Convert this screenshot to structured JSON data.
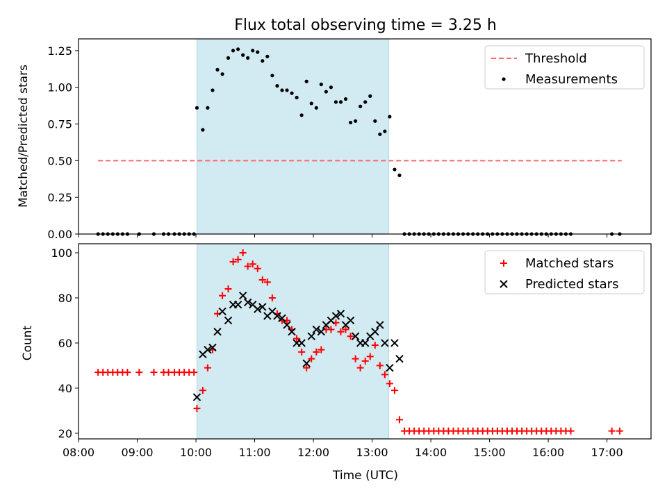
{
  "chart_data": [
    {
      "type": "scatter",
      "title": "Flux total observing time = 3.25 h",
      "xlabel": "",
      "ylabel": "Matched/Predicted stars",
      "xlim": [
        "08:00",
        "17:45"
      ],
      "ylim": [
        0,
        1.33
      ],
      "yticks": [
        "0.00",
        "0.25",
        "0.50",
        "0.75",
        "1.00",
        "1.25"
      ],
      "shaded_span": {
        "start": "10:01",
        "end": "13:17",
        "color": "#add8e6"
      },
      "legend_position": "top-right",
      "series": [
        {
          "name": "Threshold",
          "kind": "dashed-line",
          "color": "#ff6666",
          "points": [
            [
              "08:20",
              0.5
            ],
            [
              "17:15",
              0.5
            ]
          ]
        },
        {
          "name": "Measurements",
          "kind": "dot",
          "color": "#000000",
          "points": [
            [
              "08:20",
              0
            ],
            [
              "08:25",
              0
            ],
            [
              "08:30",
              0
            ],
            [
              "08:35",
              0
            ],
            [
              "08:40",
              0
            ],
            [
              "08:45",
              0
            ],
            [
              "08:50",
              0
            ],
            [
              "09:02",
              0
            ],
            [
              "09:17",
              0
            ],
            [
              "09:27",
              0
            ],
            [
              "09:32",
              0
            ],
            [
              "09:38",
              0
            ],
            [
              "09:43",
              0
            ],
            [
              "09:48",
              0
            ],
            [
              "09:53",
              0
            ],
            [
              "09:58",
              0
            ],
            [
              "10:01",
              0.86
            ],
            [
              "10:07",
              0.71
            ],
            [
              "10:12",
              0.86
            ],
            [
              "10:17",
              0.98
            ],
            [
              "10:22",
              1.12
            ],
            [
              "10:27",
              1.09
            ],
            [
              "10:33",
              1.2
            ],
            [
              "10:38",
              1.25
            ],
            [
              "10:43",
              1.26
            ],
            [
              "10:48",
              1.22
            ],
            [
              "10:53",
              1.2
            ],
            [
              "10:58",
              1.25
            ],
            [
              "11:03",
              1.24
            ],
            [
              "11:08",
              1.18
            ],
            [
              "11:13",
              1.21
            ],
            [
              "11:18",
              1.08
            ],
            [
              "11:23",
              1.01
            ],
            [
              "11:28",
              0.98
            ],
            [
              "11:33",
              0.98
            ],
            [
              "11:38",
              0.96
            ],
            [
              "11:43",
              0.93
            ],
            [
              "11:48",
              0.81
            ],
            [
              "11:53",
              1.04
            ],
            [
              "11:58",
              0.89
            ],
            [
              "12:03",
              0.86
            ],
            [
              "12:08",
              1.02
            ],
            [
              "12:13",
              0.97
            ],
            [
              "12:18",
              1.0
            ],
            [
              "12:23",
              0.9
            ],
            [
              "12:28",
              0.9
            ],
            [
              "12:33",
              0.92
            ],
            [
              "12:38",
              0.76
            ],
            [
              "12:43",
              0.77
            ],
            [
              "12:48",
              0.87
            ],
            [
              "12:53",
              0.9
            ],
            [
              "12:58",
              0.94
            ],
            [
              "13:03",
              0.77
            ],
            [
              "13:08",
              0.68
            ],
            [
              "13:13",
              0.7
            ],
            [
              "13:18",
              0.8
            ],
            [
              "13:23",
              0.44
            ],
            [
              "13:28",
              0.4
            ],
            [
              "13:33",
              0
            ],
            [
              "13:38",
              0
            ],
            [
              "13:43",
              0
            ],
            [
              "13:48",
              0
            ],
            [
              "13:53",
              0
            ],
            [
              "13:58",
              0
            ],
            [
              "14:03",
              0
            ],
            [
              "14:08",
              0
            ],
            [
              "14:13",
              0
            ],
            [
              "14:18",
              0
            ],
            [
              "14:23",
              0
            ],
            [
              "14:28",
              0
            ],
            [
              "14:33",
              0
            ],
            [
              "14:38",
              0
            ],
            [
              "14:43",
              0
            ],
            [
              "14:48",
              0
            ],
            [
              "14:53",
              0
            ],
            [
              "14:58",
              0
            ],
            [
              "15:03",
              0
            ],
            [
              "15:08",
              0
            ],
            [
              "15:13",
              0
            ],
            [
              "15:18",
              0
            ],
            [
              "15:23",
              0
            ],
            [
              "15:28",
              0
            ],
            [
              "15:33",
              0
            ],
            [
              "15:38",
              0
            ],
            [
              "15:43",
              0
            ],
            [
              "15:48",
              0
            ],
            [
              "15:53",
              0
            ],
            [
              "15:58",
              0
            ],
            [
              "16:03",
              0
            ],
            [
              "16:08",
              0
            ],
            [
              "16:13",
              0
            ],
            [
              "16:18",
              0
            ],
            [
              "16:23",
              0
            ],
            [
              "17:05",
              0
            ],
            [
              "17:13",
              0
            ]
          ]
        }
      ]
    },
    {
      "type": "scatter",
      "title": "",
      "xlabel": "Time (UTC)",
      "ylabel": "Count",
      "xlim": [
        "08:00",
        "17:45"
      ],
      "ylim": [
        17.5,
        104
      ],
      "yticks": [
        "20",
        "40",
        "60",
        "80",
        "100"
      ],
      "xticks": [
        "08:00",
        "09:00",
        "10:00",
        "11:00",
        "12:00",
        "13:00",
        "14:00",
        "15:00",
        "16:00",
        "17:00"
      ],
      "shaded_span": {
        "start": "10:01",
        "end": "13:17",
        "color": "#add8e6"
      },
      "legend_position": "top-right",
      "series": [
        {
          "name": "Matched stars",
          "kind": "plus",
          "color": "#ff0000",
          "points": [
            [
              "08:20",
              47
            ],
            [
              "08:25",
              47
            ],
            [
              "08:30",
              47
            ],
            [
              "08:35",
              47
            ],
            [
              "08:40",
              47
            ],
            [
              "08:45",
              47
            ],
            [
              "08:50",
              47
            ],
            [
              "09:02",
              47
            ],
            [
              "09:17",
              47
            ],
            [
              "09:27",
              47
            ],
            [
              "09:32",
              47
            ],
            [
              "09:38",
              47
            ],
            [
              "09:43",
              47
            ],
            [
              "09:48",
              47
            ],
            [
              "09:53",
              47
            ],
            [
              "09:58",
              47
            ],
            [
              "10:01",
              31
            ],
            [
              "10:07",
              39
            ],
            [
              "10:12",
              49
            ],
            [
              "10:17",
              57
            ],
            [
              "10:22",
              73
            ],
            [
              "10:27",
              81
            ],
            [
              "10:33",
              84
            ],
            [
              "10:38",
              96
            ],
            [
              "10:43",
              97
            ],
            [
              "10:48",
              100
            ],
            [
              "10:53",
              94
            ],
            [
              "10:58",
              95
            ],
            [
              "11:03",
              93
            ],
            [
              "11:08",
              88
            ],
            [
              "11:13",
              87
            ],
            [
              "11:18",
              80
            ],
            [
              "11:23",
              73
            ],
            [
              "11:28",
              70
            ],
            [
              "11:33",
              70
            ],
            [
              "11:38",
              66
            ],
            [
              "11:43",
              62
            ],
            [
              "11:48",
              56
            ],
            [
              "11:53",
              49
            ],
            [
              "11:58",
              53
            ],
            [
              "12:03",
              56
            ],
            [
              "12:08",
              57
            ],
            [
              "12:13",
              66
            ],
            [
              "12:18",
              66
            ],
            [
              "12:23",
              69
            ],
            [
              "12:28",
              65
            ],
            [
              "12:33",
              66
            ],
            [
              "12:38",
              63
            ],
            [
              "12:43",
              53
            ],
            [
              "12:48",
              49
            ],
            [
              "12:53",
              52
            ],
            [
              "12:58",
              54
            ],
            [
              "13:03",
              59
            ],
            [
              "13:08",
              50
            ],
            [
              "13:13",
              46
            ],
            [
              "13:18",
              42
            ],
            [
              "13:23",
              39
            ],
            [
              "13:28",
              26
            ],
            [
              "13:33",
              21
            ],
            [
              "13:38",
              21
            ],
            [
              "13:43",
              21
            ],
            [
              "13:48",
              21
            ],
            [
              "13:53",
              21
            ],
            [
              "13:58",
              21
            ],
            [
              "14:03",
              21
            ],
            [
              "14:08",
              21
            ],
            [
              "14:13",
              21
            ],
            [
              "14:18",
              21
            ],
            [
              "14:23",
              21
            ],
            [
              "14:28",
              21
            ],
            [
              "14:33",
              21
            ],
            [
              "14:38",
              21
            ],
            [
              "14:43",
              21
            ],
            [
              "14:48",
              21
            ],
            [
              "14:53",
              21
            ],
            [
              "14:58",
              21
            ],
            [
              "15:03",
              21
            ],
            [
              "15:08",
              21
            ],
            [
              "15:13",
              21
            ],
            [
              "15:18",
              21
            ],
            [
              "15:23",
              21
            ],
            [
              "15:28",
              21
            ],
            [
              "15:33",
              21
            ],
            [
              "15:38",
              21
            ],
            [
              "15:43",
              21
            ],
            [
              "15:48",
              21
            ],
            [
              "15:53",
              21
            ],
            [
              "15:58",
              21
            ],
            [
              "16:03",
              21
            ],
            [
              "16:08",
              21
            ],
            [
              "16:13",
              21
            ],
            [
              "16:18",
              21
            ],
            [
              "16:23",
              21
            ],
            [
              "17:05",
              21
            ],
            [
              "17:13",
              21
            ]
          ]
        },
        {
          "name": "Predicted stars",
          "kind": "cross",
          "color": "#000000",
          "points": [
            [
              "10:01",
              36
            ],
            [
              "10:07",
              55
            ],
            [
              "10:12",
              57
            ],
            [
              "10:17",
              58
            ],
            [
              "10:22",
              65
            ],
            [
              "10:27",
              74
            ],
            [
              "10:33",
              70
            ],
            [
              "10:38",
              77
            ],
            [
              "10:43",
              77
            ],
            [
              "10:48",
              81
            ],
            [
              "10:53",
              78
            ],
            [
              "10:58",
              77
            ],
            [
              "11:03",
              75
            ],
            [
              "11:08",
              76
            ],
            [
              "11:13",
              72
            ],
            [
              "11:18",
              74
            ],
            [
              "11:23",
              72
            ],
            [
              "11:28",
              71
            ],
            [
              "11:33",
              68
            ],
            [
              "11:38",
              65
            ],
            [
              "11:43",
              60
            ],
            [
              "11:48",
              60
            ],
            [
              "11:53",
              51
            ],
            [
              "11:58",
              63
            ],
            [
              "12:03",
              66
            ],
            [
              "12:08",
              65
            ],
            [
              "12:13",
              68
            ],
            [
              "12:18",
              70
            ],
            [
              "12:23",
              72
            ],
            [
              "12:28",
              73
            ],
            [
              "12:33",
              68
            ],
            [
              "12:38",
              70
            ],
            [
              "12:43",
              63
            ],
            [
              "12:48",
              60
            ],
            [
              "12:53",
              60
            ],
            [
              "12:58",
              63
            ],
            [
              "13:03",
              65
            ],
            [
              "13:08",
              68
            ],
            [
              "13:13",
              60
            ],
            [
              "13:18",
              49
            ],
            [
              "13:23",
              60
            ],
            [
              "13:28",
              53
            ]
          ]
        }
      ]
    }
  ]
}
